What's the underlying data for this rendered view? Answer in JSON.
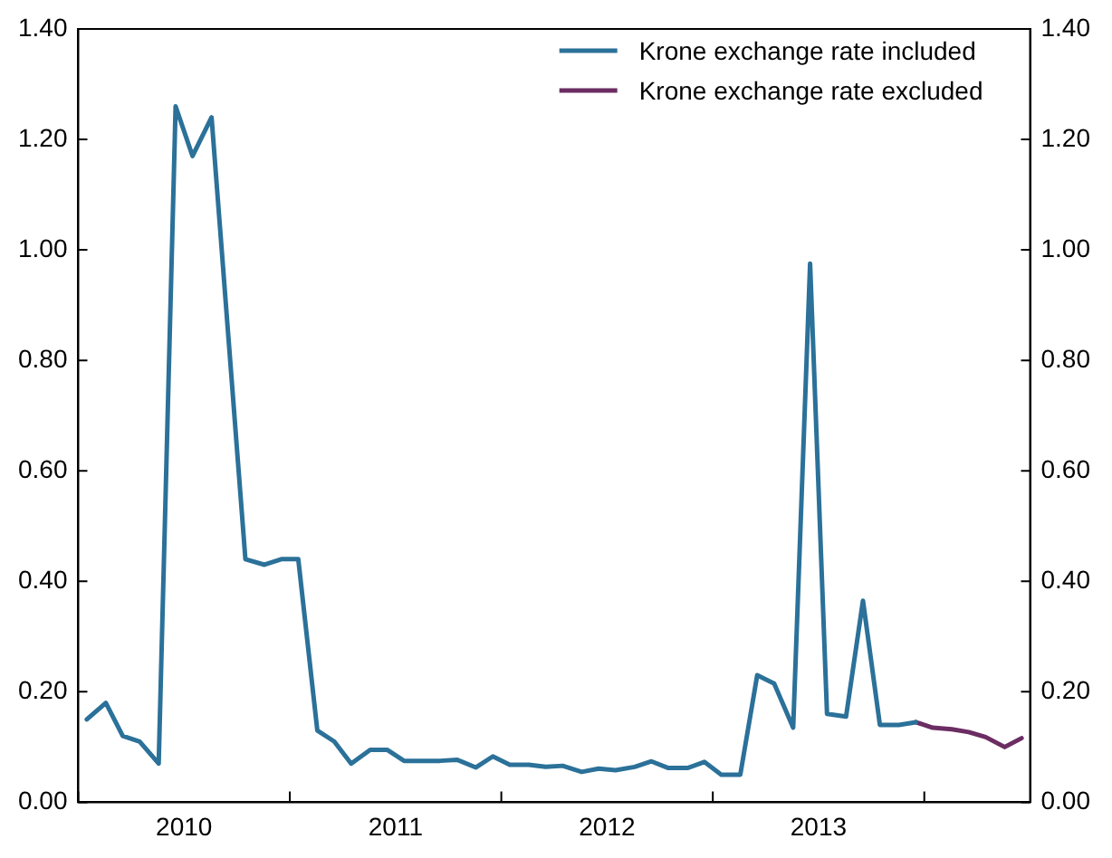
{
  "chart_data": {
    "type": "line",
    "x": [
      2010.04,
      2010.13,
      2010.21,
      2010.29,
      2010.38,
      2010.46,
      2010.54,
      2010.63,
      2010.71,
      2010.79,
      2010.88,
      2010.96,
      2011.04,
      2011.13,
      2011.21,
      2011.29,
      2011.38,
      2011.46,
      2011.54,
      2011.63,
      2011.71,
      2011.79,
      2011.88,
      2011.96,
      2012.04,
      2012.13,
      2012.21,
      2012.29,
      2012.38,
      2012.46,
      2012.54,
      2012.63,
      2012.71,
      2012.79,
      2012.88,
      2012.96,
      2013.04,
      2013.13,
      2013.21,
      2013.29,
      2013.38,
      2013.46,
      2013.54,
      2013.63,
      2013.71,
      2013.79,
      2013.88,
      2013.96,
      2014.04,
      2014.13,
      2014.21,
      2014.29,
      2014.38,
      2014.46
    ],
    "series": [
      {
        "name": "Krone exchange rate included",
        "color": "#2b7199",
        "values": [
          0.15,
          0.18,
          0.12,
          0.11,
          0.07,
          1.26,
          1.17,
          1.24,
          0.84,
          0.44,
          0.43,
          0.44,
          0.44,
          0.13,
          0.11,
          0.07,
          0.095,
          0.095,
          0.075,
          0.075,
          0.075,
          0.077,
          0.063,
          0.083,
          0.068,
          0.068,
          0.064,
          0.066,
          0.055,
          0.061,
          0.058,
          0.064,
          0.074,
          0.062,
          0.062,
          0.073,
          0.05,
          0.05,
          0.23,
          0.215,
          0.135,
          0.975,
          0.16,
          0.155,
          0.365,
          0.14,
          0.14,
          0.145,
          null,
          null,
          null,
          null,
          null,
          null
        ]
      },
      {
        "name": "Krone exchange rate excluded",
        "color": "#6b2d62",
        "values": [
          null,
          null,
          null,
          null,
          null,
          null,
          null,
          null,
          null,
          null,
          null,
          null,
          null,
          null,
          null,
          null,
          null,
          null,
          null,
          null,
          null,
          null,
          null,
          null,
          null,
          null,
          null,
          null,
          null,
          null,
          null,
          null,
          null,
          null,
          null,
          null,
          null,
          null,
          null,
          null,
          null,
          null,
          null,
          null,
          null,
          null,
          null,
          0.145,
          0.135,
          0.132,
          0.127,
          0.118,
          0.1,
          0.116
        ]
      }
    ],
    "xlim": [
      2010,
      2014.5
    ],
    "xticks": [
      {
        "value": 2010,
        "label": null
      },
      {
        "value": 2010.5,
        "label": "2010"
      },
      {
        "value": 2011,
        "label": null
      },
      {
        "value": 2011.5,
        "label": "2011"
      },
      {
        "value": 2012,
        "label": null
      },
      {
        "value": 2012.5,
        "label": "2012"
      },
      {
        "value": 2013,
        "label": null
      },
      {
        "value": 2013.5,
        "label": "2013"
      },
      {
        "value": 2014,
        "label": null
      }
    ],
    "ylim": [
      0,
      1.4
    ],
    "yticks": [
      {
        "value": 0,
        "label": "0.00"
      },
      {
        "value": 0.2,
        "label": "0.20"
      },
      {
        "value": 0.4,
        "label": "0.40"
      },
      {
        "value": 0.6,
        "label": "0.60"
      },
      {
        "value": 0.8,
        "label": "0.80"
      },
      {
        "value": 1,
        "label": "1.00"
      },
      {
        "value": 1.2,
        "label": "1.20"
      },
      {
        "value": 1.4,
        "label": "1.40"
      }
    ],
    "y2lim": [
      0,
      1.4
    ],
    "y2ticks": [
      {
        "value": 0,
        "label": "0.00"
      },
      {
        "value": 0.2,
        "label": "0.20"
      },
      {
        "value": 0.4,
        "label": "0.40"
      },
      {
        "value": 0.6,
        "label": "0.60"
      },
      {
        "value": 0.8,
        "label": "0.80"
      },
      {
        "value": 1,
        "label": "1.00"
      },
      {
        "value": 1.2,
        "label": "1.20"
      },
      {
        "value": 1.4,
        "label": "1.40"
      }
    ],
    "grid": false,
    "legend": "top right",
    "marker": "none",
    "line_style": "solid"
  }
}
